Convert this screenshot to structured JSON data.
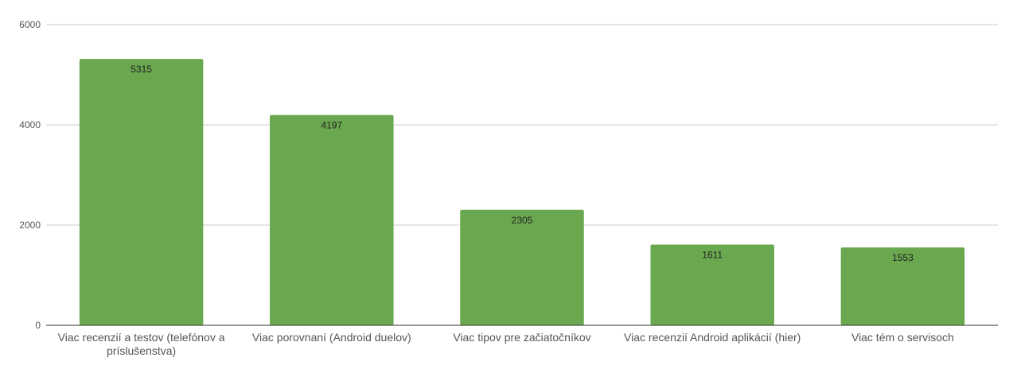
{
  "chart_data": {
    "type": "bar",
    "categories": [
      "Viac recenzií a testov (telefónov a príslušenstva)",
      "Viac porovnaní (Android duelov)",
      "Viac tipov pre začiatočníkov",
      "Viac recenzií Android aplikácií (hier)",
      "Viac tém o servisoch"
    ],
    "category_lines": [
      [
        "Viac recenzií a testov (telefónov a",
        "príslušenstva)"
      ],
      [
        "Viac porovnaní (Android duelov)"
      ],
      [
        "Viac tipov pre začiatočníkov"
      ],
      [
        "Viac recenzií Android aplikácií (hier)"
      ],
      [
        "Viac tém o servisoch"
      ]
    ],
    "values": [
      5315,
      4197,
      2305,
      1611,
      1553
    ],
    "data_labels": [
      "5315",
      "4197",
      "2305",
      "1611",
      "1553"
    ],
    "yticks": [
      0,
      2000,
      4000,
      6000
    ],
    "ylim": [
      0,
      6000
    ],
    "grid": true,
    "legend": "none",
    "colors": {
      "bar": "#6aa84f",
      "grid": "#cccccc",
      "axis": "#333333"
    }
  }
}
